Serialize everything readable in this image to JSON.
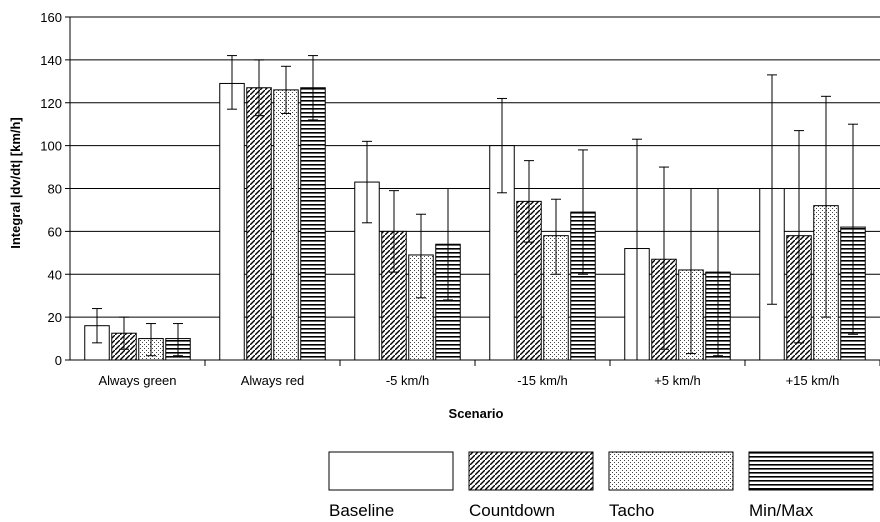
{
  "chart_data": {
    "type": "bar",
    "xlabel": "Scenario",
    "ylabel": "Integral |dv/dt| [km/h]",
    "ylim": [
      0,
      160
    ],
    "yticks": [
      0,
      20,
      40,
      60,
      80,
      100,
      120,
      140,
      160
    ],
    "grid": "horizontal",
    "legend_position": "bottom",
    "categories": [
      "Always green",
      "Always red",
      "-5 km/h",
      "-15 km/h",
      "+5 km/h",
      "+15 km/h"
    ],
    "series": [
      {
        "name": "Baseline",
        "pattern": "plain",
        "values": [
          16,
          129,
          83,
          100,
          52,
          80
        ],
        "error_low": [
          8,
          117,
          64,
          78,
          0,
          26
        ],
        "error_high": [
          24,
          142,
          102,
          122,
          103,
          133
        ]
      },
      {
        "name": "Countdown",
        "pattern": "diagonal",
        "values": [
          12.5,
          127,
          60,
          74,
          47,
          58
        ],
        "error_low": [
          5,
          114,
          41,
          55,
          5,
          8
        ],
        "error_high": [
          20,
          140,
          79,
          93,
          90,
          107
        ]
      },
      {
        "name": "Tacho",
        "pattern": "dots",
        "values": [
          10,
          126,
          49,
          58,
          42,
          72
        ],
        "error_low": [
          2,
          115,
          29,
          40,
          3,
          20
        ],
        "error_high": [
          17,
          137,
          68,
          75,
          80,
          123
        ]
      },
      {
        "name": "Min/Max",
        "pattern": "horizontal-lines",
        "values": [
          10,
          127,
          54,
          69,
          41,
          62
        ],
        "error_low": [
          2,
          112,
          28,
          40,
          2,
          12
        ],
        "error_high": [
          17,
          142,
          80,
          98,
          80,
          110
        ]
      }
    ]
  }
}
